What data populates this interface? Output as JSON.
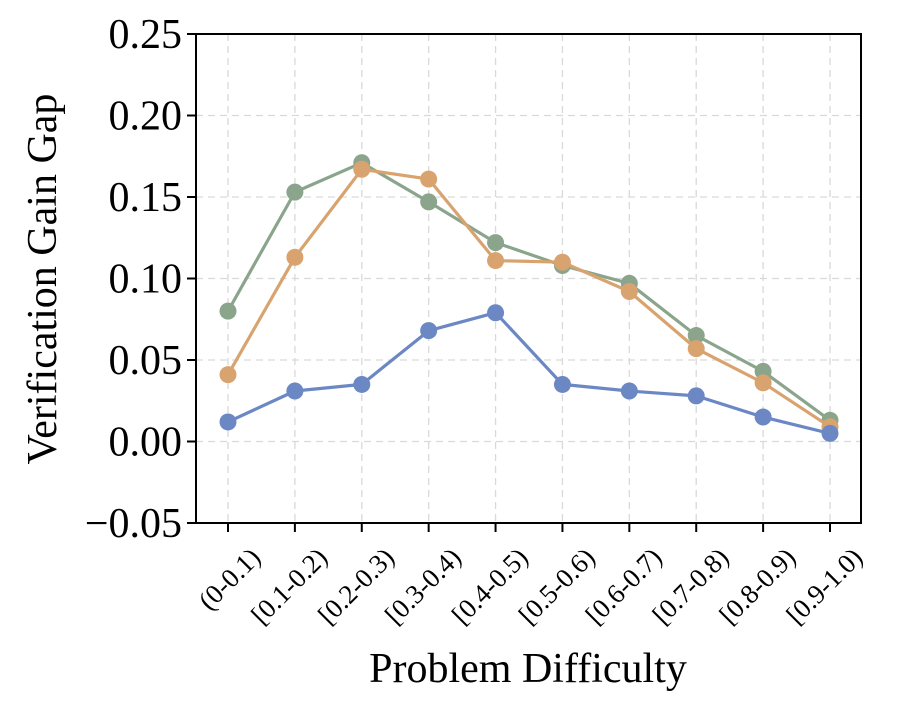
{
  "chart_data": {
    "type": "line",
    "title": "",
    "xlabel": "Problem Difficulty",
    "ylabel": "Verification Gain Gap",
    "categories": [
      "(0-0.1)",
      "[0.1-0.2)",
      "[0.2-0.3)",
      "[0.3-0.4)",
      "[0.4-0.5)",
      "[0.5-0.6)",
      "[0.6-0.7)",
      "[0.7-0.8)",
      "[0.8-0.9)",
      "[0.9-1.0)"
    ],
    "ylim": [
      -0.05,
      0.25
    ],
    "yticks": [
      -0.05,
      0.0,
      0.05,
      0.1,
      0.15,
      0.2,
      0.25
    ],
    "ytick_labels": [
      "−0.05",
      "0.00",
      "0.05",
      "0.10",
      "0.15",
      "0.20",
      "0.25"
    ],
    "grid": true,
    "series": [
      {
        "name": "green",
        "color": "#8aa58c",
        "values": [
          0.08,
          0.153,
          0.171,
          0.147,
          0.122,
          0.108,
          0.097,
          0.065,
          0.043,
          0.013
        ]
      },
      {
        "name": "orange",
        "color": "#d9a36f",
        "values": [
          0.041,
          0.113,
          0.167,
          0.161,
          0.111,
          0.11,
          0.092,
          0.057,
          0.036,
          0.009
        ]
      },
      {
        "name": "blue",
        "color": "#6b88c4",
        "values": [
          0.012,
          0.031,
          0.035,
          0.068,
          0.079,
          0.035,
          0.031,
          0.028,
          0.015,
          0.005
        ]
      }
    ]
  }
}
